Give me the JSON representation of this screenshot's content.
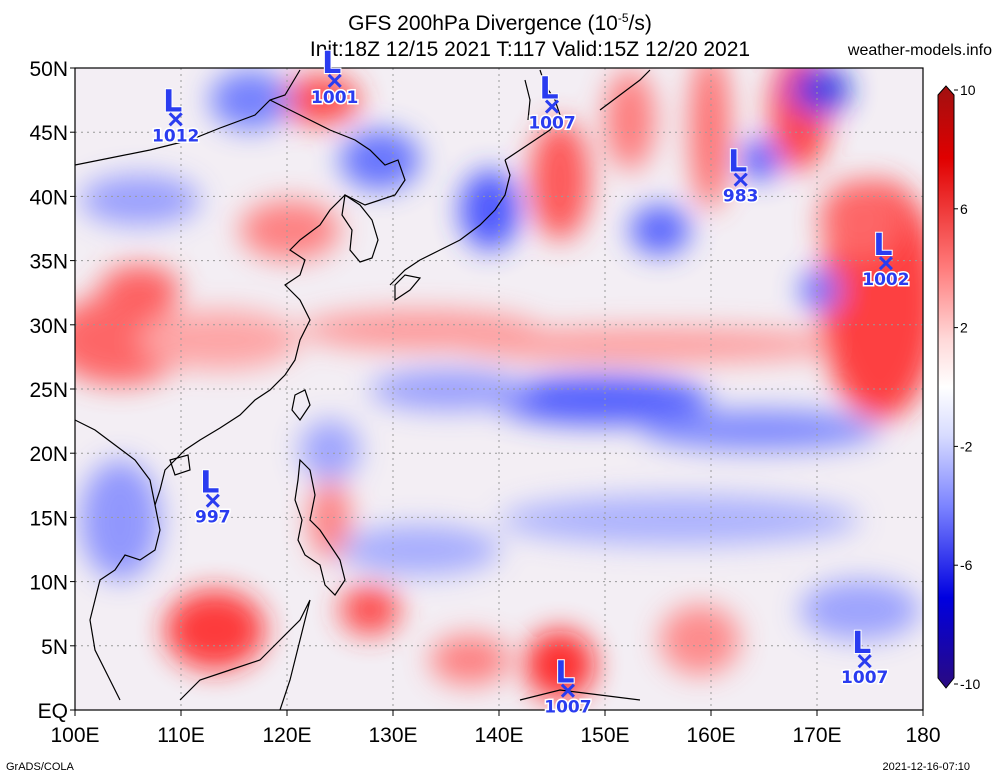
{
  "title": {
    "line1": "GFS 200hPa Divergence (10",
    "line1_exp": "-5",
    "line1_tail": "/s)",
    "line2": "Init:18Z 12/15 2021 T:117 Valid:15Z 12/20 2021"
  },
  "site": "weather-models.info",
  "credit_left": "GrADS/COLA",
  "credit_right": "2021-12-16-07:10",
  "map": {
    "lon_range": [
      100,
      180
    ],
    "lat_range": [
      0,
      50
    ],
    "lat_labels": [
      "50N",
      "45N",
      "40N",
      "35N",
      "30N",
      "25N",
      "20N",
      "15N",
      "10N",
      "5N",
      "EQ"
    ],
    "lon_labels": [
      "100E",
      "110E",
      "120E",
      "130E",
      "140E",
      "150E",
      "160E",
      "170E",
      "180"
    ],
    "colors": {
      "positive": "#e8000b",
      "negative": "#1a22e6",
      "low_marker": "#2a3cf0"
    }
  },
  "colorbar": {
    "labels": [
      "10",
      "6",
      "2",
      "-2",
      "-6",
      "-10"
    ],
    "range": [
      -10,
      10
    ]
  },
  "lows": [
    {
      "label": "1012",
      "lon": 109.5,
      "lat": 46
    },
    {
      "label": "1001",
      "lon": 124.5,
      "lat": 49
    },
    {
      "label": "1007",
      "lon": 145,
      "lat": 47
    },
    {
      "label": "983",
      "lon": 162.8,
      "lat": 41.3
    },
    {
      "label": "1002",
      "lon": 176.5,
      "lat": 34.8
    },
    {
      "label": "997",
      "lon": 113,
      "lat": 16.3
    },
    {
      "label": "1007",
      "lon": 146.5,
      "lat": 1.5
    },
    {
      "label": "1007",
      "lon": 174.5,
      "lat": 3.8
    }
  ]
}
